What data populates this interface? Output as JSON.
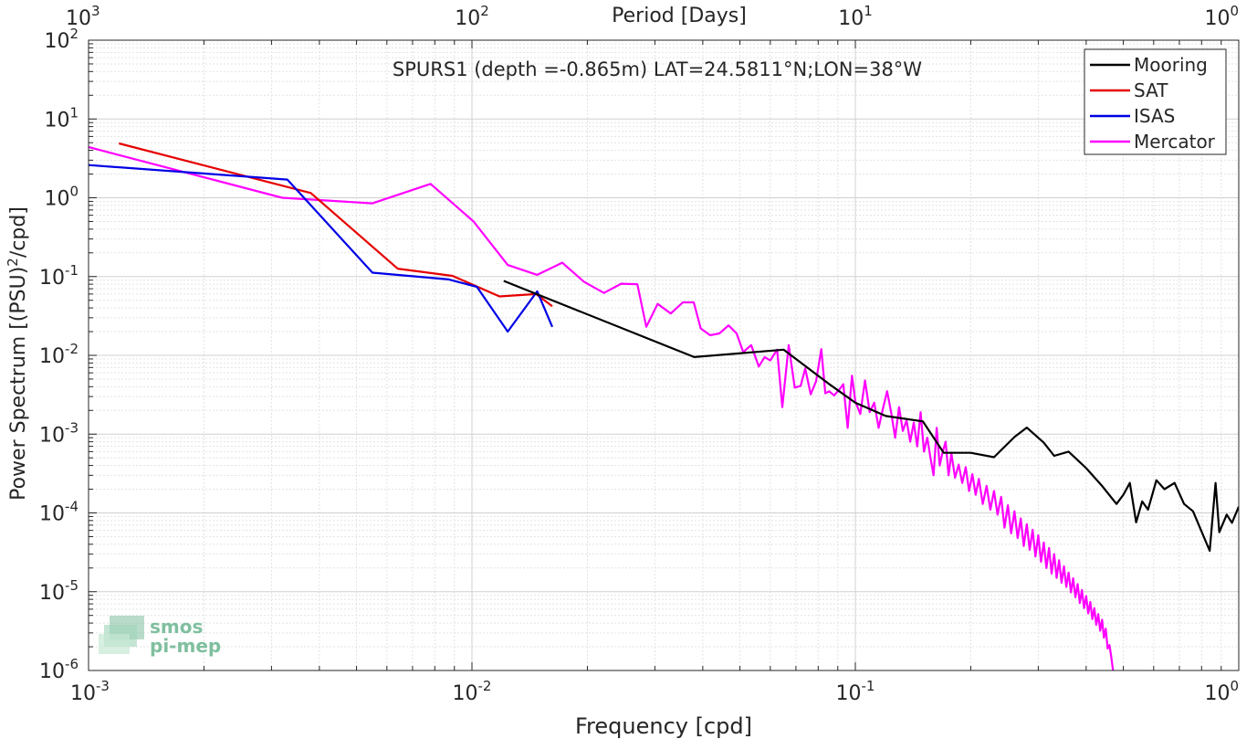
{
  "chart_data": {
    "type": "line",
    "title": "SPURS1 (depth =-0.865m) LAT=24.5811°N;LON=38°W",
    "xlabel": "Frequency [cpd]",
    "ylabel_main": "Power Spectrum [(PSU)",
    "ylabel_sup": "2",
    "ylabel_tail": "/cpd]",
    "x2label": "Period [Days]",
    "x_scale": "log",
    "y_scale": "log",
    "xlim": [
      0.001,
      1
    ],
    "ylim": [
      1e-06,
      100
    ],
    "grid": true,
    "legend_position": "top-right",
    "x_ticks": [
      {
        "value": 0.001,
        "base": "10",
        "exp": "-3"
      },
      {
        "value": 0.01,
        "base": "10",
        "exp": "-2"
      },
      {
        "value": 0.1,
        "base": "10",
        "exp": "-1"
      },
      {
        "value": 1,
        "base": "10",
        "exp": "0"
      }
    ],
    "y_ticks": [
      {
        "value": 1e-06,
        "base": "10",
        "exp": "-6"
      },
      {
        "value": 1e-05,
        "base": "10",
        "exp": "-5"
      },
      {
        "value": 0.0001,
        "base": "10",
        "exp": "-4"
      },
      {
        "value": 0.001,
        "base": "10",
        "exp": "-3"
      },
      {
        "value": 0.01,
        "base": "10",
        "exp": "-2"
      },
      {
        "value": 0.1,
        "base": "10",
        "exp": "-1"
      },
      {
        "value": 1,
        "base": "10",
        "exp": "0"
      },
      {
        "value": 10,
        "base": "10",
        "exp": "1"
      },
      {
        "value": 100,
        "base": "10",
        "exp": "2"
      }
    ],
    "period_ticks": [
      {
        "value": 1000,
        "base": "10",
        "exp": "3"
      },
      {
        "value": 100,
        "base": "10",
        "exp": "2"
      },
      {
        "value": 10,
        "base": "10",
        "exp": "1"
      },
      {
        "value": 1,
        "base": "10",
        "exp": "0"
      }
    ],
    "series": [
      {
        "name": "Mooring",
        "color": "#000000",
        "points": [
          [
            0.0121,
            0.088
          ],
          [
            0.038,
            0.0095
          ],
          [
            0.065,
            0.0118
          ],
          [
            0.085,
            0.0044
          ],
          [
            0.1,
            0.0025
          ],
          [
            0.12,
            0.0017
          ],
          [
            0.15,
            0.00145
          ],
          [
            0.17,
            0.00058
          ],
          [
            0.2,
            0.00058
          ],
          [
            0.23,
            0.00051
          ],
          [
            0.26,
            0.00092
          ],
          [
            0.28,
            0.00121
          ],
          [
            0.31,
            0.00078
          ],
          [
            0.33,
            0.00053
          ],
          [
            0.36,
            0.0006
          ],
          [
            0.4,
            0.00037
          ],
          [
            0.44,
            0.00022
          ],
          [
            0.48,
            0.00013
          ],
          [
            0.5,
            0.00017
          ],
          [
            0.52,
            0.00024
          ],
          [
            0.54,
            7.6e-05
          ],
          [
            0.56,
            0.00014
          ],
          [
            0.58,
            0.00011
          ],
          [
            0.61,
            0.00026
          ],
          [
            0.64,
            0.0002
          ],
          [
            0.68,
            0.00024
          ],
          [
            0.72,
            0.00013
          ],
          [
            0.76,
            0.000105
          ],
          [
            0.8,
            5.8e-05
          ],
          [
            0.84,
            3.3e-05
          ],
          [
            0.87,
            0.00024
          ],
          [
            0.89,
            5.7e-05
          ],
          [
            0.93,
            9.5e-05
          ],
          [
            0.96,
            7.5e-05
          ],
          [
            1.0,
            0.00012
          ]
        ]
      },
      {
        "name": "SAT",
        "color": "#e60000",
        "points": [
          [
            0.0012,
            4.9
          ],
          [
            0.0038,
            1.15
          ],
          [
            0.0064,
            0.126
          ],
          [
            0.0089,
            0.102
          ],
          [
            0.0118,
            0.056
          ],
          [
            0.0147,
            0.06
          ],
          [
            0.0162,
            0.042
          ]
        ]
      },
      {
        "name": "ISAS",
        "color": "#0000e6",
        "points": [
          [
            0.001,
            2.6
          ],
          [
            0.0033,
            1.7
          ],
          [
            0.0055,
            0.112
          ],
          [
            0.0087,
            0.092
          ],
          [
            0.0103,
            0.074
          ],
          [
            0.0124,
            0.02
          ],
          [
            0.0148,
            0.065
          ],
          [
            0.0162,
            0.023
          ]
        ]
      },
      {
        "name": "Mercator",
        "color": "#ff00ff",
        "points": [
          [
            0.001,
            4.4
          ],
          [
            0.0032,
            1.0
          ],
          [
            0.0055,
            0.85
          ],
          [
            0.0078,
            1.5
          ],
          [
            0.0101,
            0.5
          ],
          [
            0.0124,
            0.14
          ],
          [
            0.0148,
            0.105
          ],
          [
            0.0172,
            0.15
          ],
          [
            0.0196,
            0.086
          ],
          [
            0.0221,
            0.062
          ],
          [
            0.0245,
            0.081
          ],
          [
            0.027,
            0.08
          ],
          [
            0.0285,
            0.023
          ],
          [
            0.0305,
            0.045
          ],
          [
            0.033,
            0.034
          ],
          [
            0.0355,
            0.047
          ],
          [
            0.0379,
            0.047
          ],
          [
            0.0395,
            0.022
          ],
          [
            0.0418,
            0.018
          ],
          [
            0.0442,
            0.019
          ],
          [
            0.0467,
            0.024
          ],
          [
            0.049,
            0.019
          ],
          [
            0.051,
            0.011
          ],
          [
            0.0535,
            0.0135
          ],
          [
            0.056,
            0.0072
          ],
          [
            0.058,
            0.0095
          ],
          [
            0.06,
            0.0086
          ],
          [
            0.0625,
            0.0118
          ],
          [
            0.0645,
            0.0022
          ],
          [
            0.067,
            0.0135
          ],
          [
            0.0695,
            0.0039
          ],
          [
            0.072,
            0.0041
          ],
          [
            0.074,
            0.0068
          ],
          [
            0.0765,
            0.0032
          ],
          [
            0.079,
            0.0047
          ],
          [
            0.0815,
            0.012
          ],
          [
            0.0835,
            0.0033
          ],
          [
            0.0855,
            0.0035
          ],
          [
            0.088,
            0.0031
          ],
          [
            0.0905,
            0.0036
          ],
          [
            0.093,
            0.0043
          ],
          [
            0.0955,
            0.0012
          ],
          [
            0.098,
            0.0055
          ],
          [
            0.1,
            0.0026
          ],
          [
            0.103,
            0.0018
          ],
          [
            0.106,
            0.0048
          ],
          [
            0.109,
            0.0019
          ],
          [
            0.112,
            0.0025
          ],
          [
            0.115,
            0.0012
          ],
          [
            0.118,
            0.0021
          ],
          [
            0.121,
            0.0035
          ],
          [
            0.124,
            0.0019
          ],
          [
            0.127,
            0.0009
          ],
          [
            0.13,
            0.0022
          ],
          [
            0.133,
            0.0011
          ],
          [
            0.136,
            0.0015
          ],
          [
            0.139,
            0.0008
          ],
          [
            0.142,
            0.0014
          ],
          [
            0.145,
            0.0007
          ],
          [
            0.148,
            0.0019
          ],
          [
            0.151,
            0.0006
          ],
          [
            0.154,
            0.0009
          ],
          [
            0.157,
            0.0005
          ],
          [
            0.16,
            0.0003
          ],
          [
            0.163,
            0.0012
          ],
          [
            0.166,
            0.0004
          ],
          [
            0.169,
            0.0006
          ],
          [
            0.172,
            0.0008
          ],
          [
            0.175,
            0.0003
          ],
          [
            0.178,
            0.00057
          ],
          [
            0.182,
            0.00028
          ],
          [
            0.186,
            0.00041
          ],
          [
            0.19,
            0.00024
          ],
          [
            0.194,
            0.00038
          ],
          [
            0.198,
            0.00019
          ],
          [
            0.202,
            0.00031
          ],
          [
            0.206,
            0.00017
          ],
          [
            0.21,
            0.00027
          ],
          [
            0.215,
            0.00013
          ],
          [
            0.22,
            0.00022
          ],
          [
            0.225,
            0.00011
          ],
          [
            0.23,
            0.00019
          ],
          [
            0.235,
            9.5e-05
          ],
          [
            0.24,
            0.00016
          ],
          [
            0.245,
            6.5e-05
          ],
          [
            0.25,
            0.000125
          ],
          [
            0.255,
            5.5e-05
          ],
          [
            0.26,
            0.000105
          ],
          [
            0.265,
            4.8e-05
          ],
          [
            0.27,
            8.5e-05
          ],
          [
            0.275,
            3.8e-05
          ],
          [
            0.28,
            7.2e-05
          ],
          [
            0.285,
            3.4e-05
          ],
          [
            0.29,
            6.1e-05
          ],
          [
            0.295,
            2.8e-05
          ],
          [
            0.3,
            5.2e-05
          ],
          [
            0.305,
            2.4e-05
          ],
          [
            0.31,
            4.2e-05
          ],
          [
            0.315,
            2e-05
          ],
          [
            0.32,
            3.6e-05
          ],
          [
            0.325,
            1.7e-05
          ],
          [
            0.33,
            3e-05
          ],
          [
            0.335,
            1.5e-05
          ],
          [
            0.34,
            2.5e-05
          ],
          [
            0.345,
            1.3e-05
          ],
          [
            0.35,
            2.1e-05
          ],
          [
            0.355,
            1.15e-05
          ],
          [
            0.36,
            1.75e-05
          ],
          [
            0.365,
            9.8e-06
          ],
          [
            0.37,
            1.48e-05
          ],
          [
            0.375,
            8.5e-06
          ],
          [
            0.38,
            1.25e-05
          ],
          [
            0.385,
            7.2e-06
          ],
          [
            0.39,
            1.05e-05
          ],
          [
            0.395,
            6.2e-06
          ],
          [
            0.4,
            8.8e-06
          ],
          [
            0.405,
            5.3e-06
          ],
          [
            0.41,
            7.4e-06
          ],
          [
            0.415,
            4.5e-06
          ],
          [
            0.42,
            6.2e-06
          ],
          [
            0.425,
            3.8e-06
          ],
          [
            0.43,
            5.2e-06
          ],
          [
            0.435,
            3.2e-06
          ],
          [
            0.44,
            4.4e-06
          ],
          [
            0.445,
            2.6e-06
          ],
          [
            0.45,
            3.4e-06
          ],
          [
            0.455,
            1.9e-06
          ],
          [
            0.46,
            2.1e-06
          ],
          [
            0.465,
            1.5e-06
          ],
          [
            0.47,
            1e-06
          ]
        ]
      }
    ]
  },
  "watermark": {
    "line1": "smos",
    "line2": "pi-mep",
    "color": "#7fbf9f"
  }
}
